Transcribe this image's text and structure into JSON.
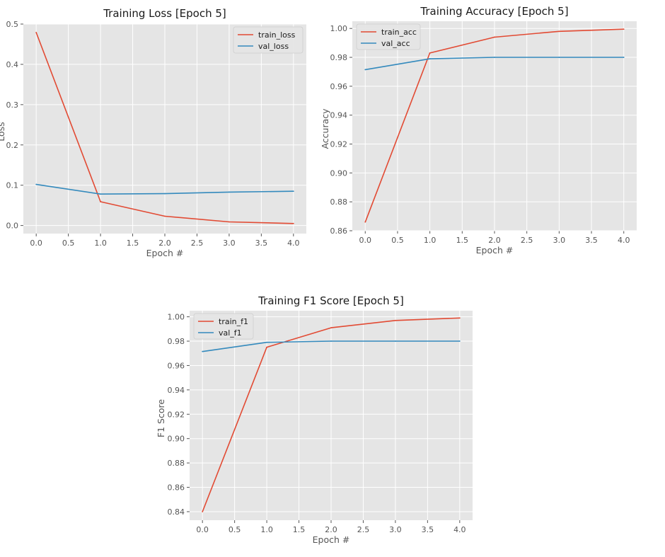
{
  "chart_data": [
    {
      "id": "loss",
      "type": "line",
      "title": "Training Loss [Epoch 5]",
      "xlabel": "Epoch #",
      "ylabel": "Loss",
      "x": [
        0,
        1,
        2,
        3,
        4
      ],
      "xlim": [
        -0.2,
        4.2
      ],
      "ylim": [
        -0.02,
        0.5
      ],
      "xticks": [
        "0.0",
        "0.5",
        "1.0",
        "1.5",
        "2.0",
        "2.5",
        "3.0",
        "3.5",
        "4.0"
      ],
      "yticks": [
        "0.0",
        "0.1",
        "0.2",
        "0.3",
        "0.4",
        "0.5"
      ],
      "grid": true,
      "legend_position": "top-right",
      "series": [
        {
          "name": "train_loss",
          "color": "#e24a33",
          "values": [
            0.479,
            0.059,
            0.023,
            0.009,
            0.005
          ]
        },
        {
          "name": "val_loss",
          "color": "#348abd",
          "values": [
            0.102,
            0.078,
            0.079,
            0.083,
            0.085
          ]
        }
      ]
    },
    {
      "id": "acc",
      "type": "line",
      "title": "Training Accuracy [Epoch 5]",
      "xlabel": "Epoch #",
      "ylabel": "Accuracy",
      "x": [
        0,
        1,
        2,
        3,
        4
      ],
      "xlim": [
        -0.2,
        4.2
      ],
      "ylim": [
        0.86,
        1.005
      ],
      "xticks": [
        "0.0",
        "0.5",
        "1.0",
        "1.5",
        "2.0",
        "2.5",
        "3.0",
        "3.5",
        "4.0"
      ],
      "yticks": [
        "0.86",
        "0.88",
        "0.90",
        "0.92",
        "0.94",
        "0.96",
        "0.98",
        "1.00"
      ],
      "grid": true,
      "legend_position": "top-left",
      "series": [
        {
          "name": "train_acc",
          "color": "#e24a33",
          "values": [
            0.866,
            0.983,
            0.994,
            0.998,
            0.9995
          ]
        },
        {
          "name": "val_acc",
          "color": "#348abd",
          "values": [
            0.9715,
            0.979,
            0.98,
            0.98,
            0.98
          ]
        }
      ]
    },
    {
      "id": "f1",
      "type": "line",
      "title": "Training F1 Score [Epoch 5]",
      "xlabel": "Epoch #",
      "ylabel": "F1 Score",
      "x": [
        0,
        1,
        2,
        3,
        4
      ],
      "xlim": [
        -0.2,
        4.2
      ],
      "ylim": [
        0.833,
        1.005
      ],
      "xticks": [
        "0.0",
        "0.5",
        "1.0",
        "1.5",
        "2.0",
        "2.5",
        "3.0",
        "3.5",
        "4.0"
      ],
      "yticks": [
        "0.84",
        "0.86",
        "0.88",
        "0.90",
        "0.92",
        "0.94",
        "0.96",
        "0.98",
        "1.00"
      ],
      "grid": true,
      "legend_position": "top-left",
      "series": [
        {
          "name": "train_f1",
          "color": "#e24a33",
          "values": [
            0.84,
            0.975,
            0.991,
            0.997,
            0.999
          ]
        },
        {
          "name": "val_f1",
          "color": "#348abd",
          "values": [
            0.9715,
            0.979,
            0.98,
            0.98,
            0.98
          ]
        }
      ]
    }
  ]
}
